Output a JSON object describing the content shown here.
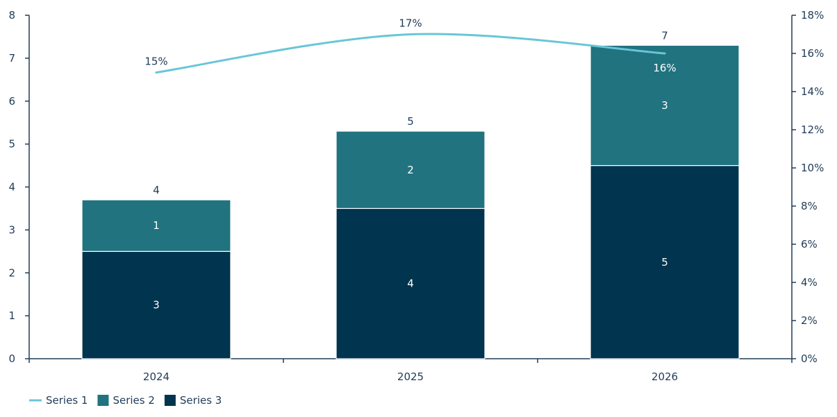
{
  "chart_data": {
    "type": "bar",
    "stacked": true,
    "categories": [
      "2024",
      "2025",
      "2026"
    ],
    "series": [
      {
        "name": "Series 3",
        "type": "bar",
        "axis": "left",
        "color": "#00344f",
        "values": [
          2.5,
          3.5,
          4.5
        ],
        "labels": [
          "3",
          "4",
          "5"
        ]
      },
      {
        "name": "Series 2",
        "type": "bar",
        "axis": "left",
        "color": "#20737f",
        "values": [
          1.2,
          1.8,
          2.8
        ],
        "labels": [
          "1",
          "2",
          "3"
        ]
      },
      {
        "name": "Series 1",
        "type": "line",
        "axis": "right",
        "color": "#68c6d8",
        "values": [
          15,
          17,
          16
        ],
        "labels": [
          "15%",
          "17%",
          "16%"
        ]
      }
    ],
    "totals": [
      "4",
      "5",
      "7"
    ],
    "y_left": {
      "min": 0,
      "max": 8,
      "ticks": [
        "0",
        "1",
        "2",
        "3",
        "4",
        "5",
        "6",
        "7",
        "8"
      ]
    },
    "y_right": {
      "min": 0,
      "max": 18,
      "ticks": [
        "0%",
        "2%",
        "4%",
        "6%",
        "8%",
        "10%",
        "12%",
        "14%",
        "16%",
        "18%"
      ]
    },
    "grid": false,
    "legend_position": "bottom-left",
    "legend": [
      {
        "label": "Series 1",
        "kind": "line",
        "color": "#68c6d8"
      },
      {
        "label": "Series 2",
        "kind": "box",
        "color": "#20737f"
      },
      {
        "label": "Series 3",
        "kind": "box",
        "color": "#00344f"
      }
    ],
    "axis_color": "#1f3b57"
  }
}
